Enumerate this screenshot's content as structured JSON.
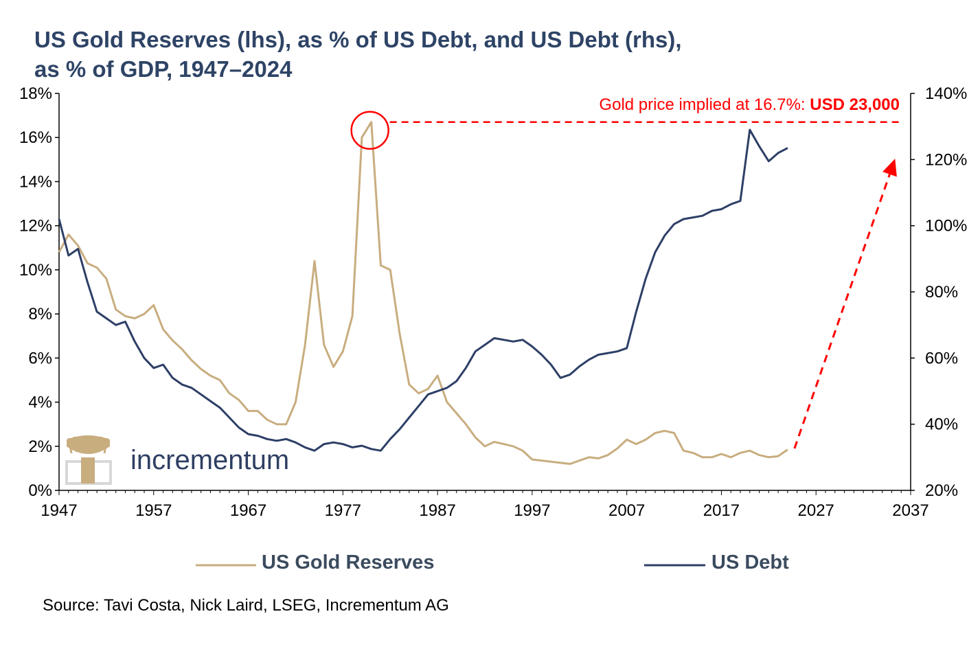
{
  "title": {
    "line1": "US Gold Reserves (lhs), as % of US Debt, and US Debt (rhs),",
    "line2": "as % of GDP, 1947–2024"
  },
  "source": "Source: Tavi Costa, Nick Laird, LSEG, Incrementum AG",
  "logo": {
    "name": "incrementum",
    "icon": "tree-logo-icon"
  },
  "annotation": {
    "text_prefix": "Gold price implied at 16.7%: ",
    "text_bold": "USD 23,000",
    "level_pct": 16.7,
    "peak_year": 1980,
    "arrow_from": {
      "year": 2024,
      "value": 1.9
    },
    "arrow_to": {
      "year": 2035.5,
      "value": 15.6
    }
  },
  "colors": {
    "gold": "#c8ad7f",
    "debt": "#2d3f66",
    "accent": "#ff0000",
    "title": "#2e4466"
  },
  "chart_data": {
    "type": "line",
    "xlim": [
      1947,
      2037
    ],
    "xticks": [
      1947,
      1957,
      1967,
      1977,
      1987,
      1997,
      2007,
      2017,
      2027,
      2037
    ],
    "ylim_left": [
      0,
      18
    ],
    "yticks_left": [
      "0%",
      "2%",
      "4%",
      "6%",
      "8%",
      "10%",
      "12%",
      "14%",
      "16%",
      "18%"
    ],
    "ylim_right": [
      20,
      140
    ],
    "yticks_right": [
      "20%",
      "40%",
      "60%",
      "80%",
      "100%",
      "120%",
      "140%"
    ],
    "legend": "bottom",
    "series": [
      {
        "name": "US Gold Reserves",
        "axis": "left",
        "x": [
          1947,
          1948,
          1949,
          1950,
          1951,
          1952,
          1953,
          1954,
          1955,
          1956,
          1957,
          1958,
          1959,
          1960,
          1961,
          1962,
          1963,
          1964,
          1965,
          1966,
          1967,
          1968,
          1969,
          1970,
          1971,
          1972,
          1973,
          1974,
          1975,
          1976,
          1977,
          1978,
          1979,
          1980,
          1981,
          1982,
          1983,
          1984,
          1985,
          1986,
          1987,
          1988,
          1989,
          1990,
          1991,
          1992,
          1993,
          1994,
          1995,
          1996,
          1997,
          1998,
          1999,
          2000,
          2001,
          2002,
          2003,
          2004,
          2005,
          2006,
          2007,
          2008,
          2009,
          2010,
          2011,
          2012,
          2013,
          2014,
          2015,
          2016,
          2017,
          2018,
          2019,
          2020,
          2021,
          2022,
          2023,
          2024
        ],
        "values": [
          10.8,
          11.6,
          11.1,
          10.3,
          10.1,
          9.6,
          8.2,
          7.9,
          7.8,
          8.0,
          8.4,
          7.3,
          6.8,
          6.4,
          5.9,
          5.5,
          5.2,
          5.0,
          4.4,
          4.1,
          3.6,
          3.6,
          3.2,
          3.0,
          3.0,
          4.0,
          6.6,
          10.4,
          6.6,
          5.6,
          6.3,
          7.9,
          16.0,
          16.7,
          10.2,
          10.0,
          7.1,
          4.8,
          4.4,
          4.6,
          5.2,
          4.0,
          3.5,
          3.0,
          2.4,
          2.0,
          2.2,
          2.1,
          2.0,
          1.8,
          1.4,
          1.35,
          1.3,
          1.25,
          1.2,
          1.35,
          1.5,
          1.45,
          1.6,
          1.9,
          2.3,
          2.1,
          2.3,
          2.6,
          2.7,
          2.6,
          1.8,
          1.7,
          1.5,
          1.5,
          1.65,
          1.5,
          1.7,
          1.8,
          1.6,
          1.5,
          1.55,
          1.85
        ]
      },
      {
        "name": "US Debt",
        "axis": "right",
        "x": [
          1947,
          1948,
          1949,
          1950,
          1951,
          1952,
          1953,
          1954,
          1955,
          1956,
          1957,
          1958,
          1959,
          1960,
          1961,
          1962,
          1963,
          1964,
          1965,
          1966,
          1967,
          1968,
          1969,
          1970,
          1971,
          1972,
          1973,
          1974,
          1975,
          1976,
          1977,
          1978,
          1979,
          1980,
          1981,
          1982,
          1983,
          1984,
          1985,
          1986,
          1987,
          1988,
          1989,
          1990,
          1991,
          1992,
          1993,
          1994,
          1995,
          1996,
          1997,
          1998,
          1999,
          2000,
          2001,
          2002,
          2003,
          2004,
          2005,
          2006,
          2007,
          2008,
          2009,
          2010,
          2011,
          2012,
          2013,
          2014,
          2015,
          2016,
          2017,
          2018,
          2019,
          2020,
          2021,
          2022,
          2023,
          2024
        ],
        "values": [
          102,
          91,
          93,
          83,
          74,
          72,
          70,
          71,
          65,
          60,
          57,
          58,
          54,
          52,
          51,
          49,
          47,
          45,
          42,
          39,
          37,
          36.5,
          35.5,
          35,
          35.5,
          34.5,
          33,
          32,
          34,
          34.5,
          34,
          33,
          33.5,
          32.5,
          32,
          35.5,
          38.5,
          42,
          45.5,
          49,
          50,
          51,
          53,
          57,
          62,
          64,
          66,
          65.5,
          65,
          65.5,
          63.5,
          61,
          58,
          54,
          55,
          57.5,
          59.5,
          61,
          61.5,
          62,
          63,
          74,
          84,
          92,
          97,
          100.5,
          102,
          102.5,
          103,
          104.5,
          105,
          106.5,
          107.5,
          129,
          124,
          119.5,
          122,
          123.5
        ]
      }
    ]
  }
}
